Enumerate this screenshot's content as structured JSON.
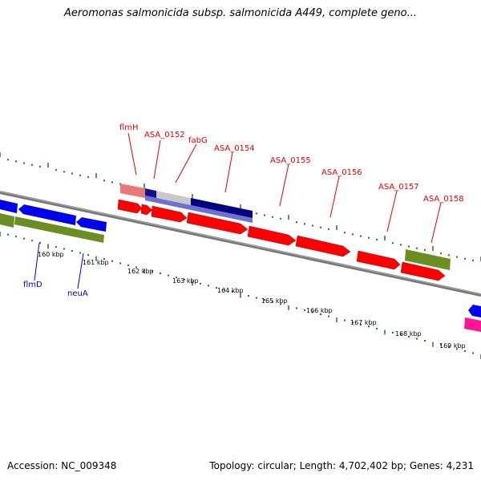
{
  "title": "Aeromonas salmonicida subsp. salmonicida A449, complete geno...",
  "accession_text": "Accession: NC_009348",
  "summary_text": "Topology: circular; Length: 4,702,402 bp; Genes: 4,231",
  "colors": {
    "forward_cds": "#ff0000",
    "reverse_cds": "#0000ff",
    "olive_feature": "#6b8e23",
    "navy_feature": "#000080",
    "light_feature": "#c0c0c0",
    "pink_feature": "#ff1493",
    "label_red": "#e00000",
    "label_blue": "#0000cc",
    "tick_green": "#1a7a1a",
    "backbone": "#808080"
  },
  "scale_labels": [
    "160 kbp",
    "161 kbp",
    "162 kbp",
    "163 kbp",
    "164 kbp",
    "165 kbp",
    "166 kbp",
    "167 kbp",
    "168 kbp",
    "169 kbp"
  ],
  "gene_labels_top": [
    "flmH",
    "ASA_0152",
    "fabG",
    "ASA_0154",
    "ASA_0155",
    "ASA_0156",
    "ASA_0157",
    "ASA_0158"
  ],
  "gene_labels_bottom": [
    "flmD",
    "neuA"
  ]
}
